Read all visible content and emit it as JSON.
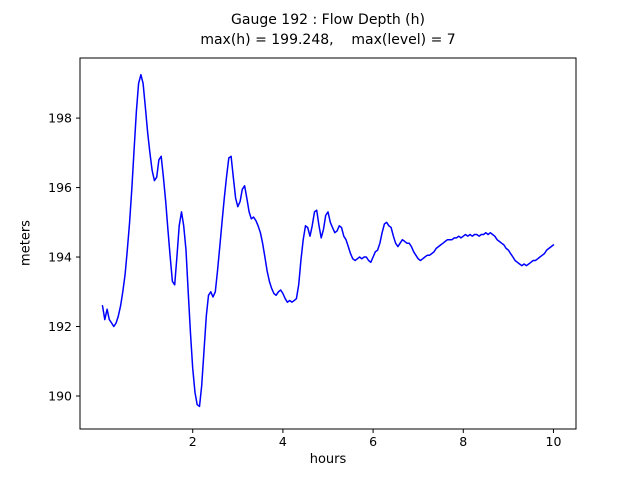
{
  "chart_data": {
    "type": "line",
    "title": "Gauge 192 : Flow Depth (h)",
    "subtitle": "max(h) = 199.248,    max(level) = 7",
    "xlabel": "hours",
    "ylabel": "meters",
    "xlim": [
      -0.5,
      10.5
    ],
    "ylim": [
      189.05,
      199.73
    ],
    "xticks": [
      2,
      4,
      6,
      8,
      10
    ],
    "yticks": [
      190,
      192,
      194,
      196,
      198
    ],
    "grid": false,
    "legend": "none",
    "line_color": "#0000ff",
    "axis_color": "#000000",
    "max_h": 199.248,
    "max_level": 7,
    "series": [
      {
        "name": "h",
        "x_start": 0,
        "x_step": 0.05,
        "y": [
          192.6,
          192.2,
          192.5,
          192.2,
          192.1,
          192.0,
          192.1,
          192.3,
          192.6,
          193.0,
          193.5,
          194.2,
          195.0,
          196.0,
          197.1,
          198.2,
          199.0,
          199.25,
          199.0,
          198.3,
          197.6,
          197.0,
          196.5,
          196.2,
          196.3,
          196.8,
          196.9,
          196.3,
          195.6,
          194.8,
          194.0,
          193.3,
          193.2,
          194.0,
          194.9,
          195.3,
          194.9,
          194.2,
          193.0,
          191.8,
          190.8,
          190.1,
          189.75,
          189.7,
          190.3,
          191.3,
          192.3,
          192.9,
          193.0,
          192.85,
          193.0,
          193.6,
          194.3,
          195.0,
          195.7,
          196.3,
          196.85,
          196.9,
          196.3,
          195.7,
          195.45,
          195.6,
          195.95,
          196.05,
          195.7,
          195.3,
          195.1,
          195.15,
          195.05,
          194.9,
          194.7,
          194.4,
          194.0,
          193.6,
          193.3,
          193.1,
          192.95,
          192.9,
          193.0,
          193.05,
          192.95,
          192.8,
          192.7,
          192.75,
          192.7,
          192.75,
          192.8,
          193.2,
          193.9,
          194.5,
          194.9,
          194.85,
          194.6,
          194.9,
          195.3,
          195.35,
          194.9,
          194.55,
          194.8,
          195.2,
          195.3,
          195.0,
          194.85,
          194.7,
          194.75,
          194.9,
          194.85,
          194.6,
          194.5,
          194.3,
          194.1,
          193.95,
          193.9,
          193.95,
          194.0,
          193.95,
          194.0,
          194.0,
          193.9,
          193.85,
          194.0,
          194.15,
          194.2,
          194.4,
          194.7,
          194.95,
          195.0,
          194.9,
          194.85,
          194.6,
          194.4,
          194.3,
          194.4,
          194.5,
          194.45,
          194.4,
          194.4,
          194.3,
          194.15,
          194.05,
          193.95,
          193.9,
          193.95,
          194.0,
          194.05,
          194.05,
          194.1,
          194.15,
          194.25,
          194.3,
          194.35,
          194.4,
          194.45,
          194.5,
          194.5,
          194.5,
          194.55,
          194.55,
          194.6,
          194.55,
          194.6,
          194.65,
          194.6,
          194.65,
          194.6,
          194.65,
          194.65,
          194.6,
          194.65,
          194.65,
          194.7,
          194.65,
          194.7,
          194.65,
          194.6,
          194.5,
          194.45,
          194.4,
          194.35,
          194.25,
          194.2,
          194.1,
          194.0,
          193.9,
          193.85,
          193.8,
          193.75,
          193.8,
          193.75,
          193.8,
          193.85,
          193.9,
          193.9,
          193.95,
          194.0,
          194.05,
          194.1,
          194.2,
          194.25,
          194.3,
          194.35
        ]
      }
    ]
  }
}
